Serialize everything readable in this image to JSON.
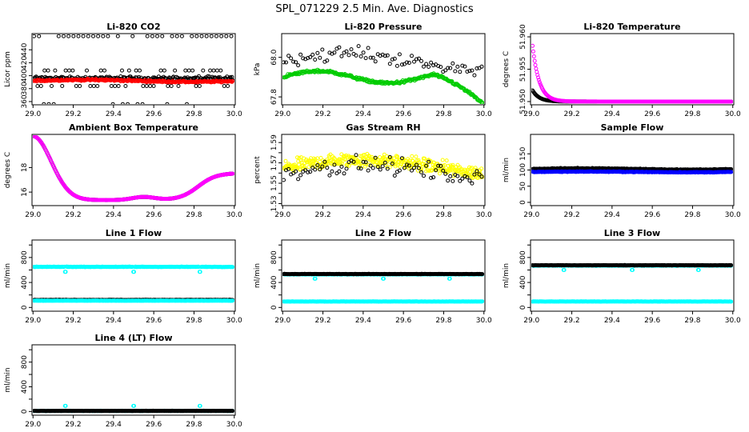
{
  "page": {
    "title": "SPL_071229  2.5 Min. Ave. Diagnostics"
  },
  "colors": {
    "black": "#000000",
    "red": "#ff0000",
    "green": "#00cc00",
    "magenta": "#ff00ff",
    "yellow": "#ffff00",
    "blue": "#0000ff",
    "cyan": "#00ffff"
  },
  "x_axis": {
    "ticks": [
      29.0,
      29.2,
      29.4,
      29.6,
      29.8,
      30.0
    ],
    "labels": [
      "29.0",
      "29.2",
      "29.4",
      "29.6",
      "29.8",
      "30.0"
    ]
  },
  "chart_data": [
    {
      "type": "scatter",
      "title": "Li-820 CO2",
      "ylabel": "Licor ppm",
      "xlim": [
        28.995,
        30.005
      ],
      "ylim": [
        355,
        465
      ],
      "yticks": [
        360,
        380,
        400,
        420,
        440
      ],
      "ytick_labels": [
        "360",
        "380",
        "400",
        "420",
        "440"
      ],
      "series": [
        {
          "name": "ref",
          "color": "black",
          "kind": "spikes",
          "base": 396,
          "amp": 40,
          "noise": 4
        },
        {
          "name": "main",
          "color": "red",
          "kind": "flat",
          "base": 392,
          "amp": 1.5,
          "noise": 2
        }
      ]
    },
    {
      "type": "scatter",
      "title": "Li-820 Pressure",
      "ylabel": "kPa",
      "xlim": [
        28.995,
        30.005
      ],
      "ylim": [
        67.76,
        68.12
      ],
      "yticks": [
        67.8,
        68.0
      ],
      "ytick_labels": [
        "67.8",
        "68.0"
      ],
      "series": [
        {
          "name": "ref",
          "color": "black",
          "kind": "scatter",
          "base": 67.98,
          "amp": 0.04,
          "noise": 0.05
        },
        {
          "name": "main",
          "color": "green",
          "kind": "pressure",
          "base": 67.9,
          "amp": 0.03,
          "noise": 0.01
        }
      ]
    },
    {
      "type": "scatter",
      "title": "Li-820 Temperature",
      "ylabel": "degrees C",
      "xlim": [
        28.995,
        30.005
      ],
      "ylim": [
        51.9495,
        51.9605
      ],
      "yticks": [
        51.95,
        51.955,
        51.96
      ],
      "ytick_labels": [
        "51.950",
        "51.955",
        "51.960"
      ],
      "series": [
        {
          "name": "ref",
          "color": "black",
          "kind": "decay",
          "base": 51.95,
          "amp": 0.002,
          "noise": 0
        },
        {
          "name": "main",
          "color": "magenta",
          "kind": "decay",
          "base": 51.95,
          "amp": 0.01,
          "noise": 0
        }
      ]
    },
    {
      "type": "scatter",
      "title": "Ambient Box Temperature",
      "ylabel": "degrees C",
      "xlim": [
        28.995,
        30.005
      ],
      "ylim": [
        14.9,
        20.7
      ],
      "yticks": [
        16,
        18
      ],
      "ytick_labels": [
        "16",
        "18"
      ],
      "series": [
        {
          "name": "ref",
          "color": "black",
          "kind": "ambient",
          "base": 0,
          "amp": 0,
          "noise": 0
        },
        {
          "name": "main",
          "color": "magenta",
          "kind": "ambient",
          "base": 0,
          "amp": 0,
          "noise": 0
        }
      ]
    },
    {
      "type": "scatter",
      "title": "Gas Stream RH",
      "ylabel": "percent",
      "xlim": [
        28.995,
        30.005
      ],
      "ylim": [
        1.528,
        1.598
      ],
      "yticks": [
        1.53,
        1.54,
        1.55,
        1.56,
        1.57,
        1.58,
        1.59
      ],
      "ytick_labels": [
        "1.53",
        "",
        "1.55",
        "",
        "1.57",
        "",
        "1.59"
      ],
      "series": [
        {
          "name": "main",
          "color": "yellow",
          "kind": "rh",
          "base": 1.565,
          "amp": 0.008,
          "noise": 0.01
        },
        {
          "name": "ref",
          "color": "black",
          "kind": "rhsparse",
          "base": 1.56,
          "amp": 0.008,
          "noise": 0.012
        }
      ]
    },
    {
      "type": "scatter",
      "title": "Sample Flow",
      "ylabel": "ml/min",
      "xlim": [
        28.995,
        30.005
      ],
      "ylim": [
        -10,
        210
      ],
      "yticks": [
        0,
        50,
        100,
        150
      ],
      "ytick_labels": [
        "0",
        "50",
        "100",
        "150"
      ],
      "series": [
        {
          "name": "ref",
          "color": "black",
          "kind": "flat",
          "base": 103,
          "amp": 2,
          "noise": 2
        },
        {
          "name": "main",
          "color": "blue",
          "kind": "flat",
          "base": 94,
          "amp": 1,
          "noise": 1.5
        }
      ]
    },
    {
      "type": "scatter",
      "title": "Line 1 Flow",
      "ylabel": "ml/min",
      "xlim": [
        28.995,
        30.005
      ],
      "ylim": [
        -60,
        1080
      ],
      "yticks": [
        0,
        200,
        400,
        600,
        800,
        1000
      ],
      "ytick_labels": [
        "0",
        "",
        "400",
        "",
        "800",
        ""
      ],
      "series": [
        {
          "name": "main",
          "color": "cyan",
          "kind": "flatdips",
          "base": 650,
          "amp": 80,
          "noise": 6
        },
        {
          "name": "ref",
          "color": "black",
          "kind": "flat",
          "base": 120,
          "amp": 0,
          "noise": 5
        },
        {
          "name": "low",
          "color": "cyan",
          "kind": "flat",
          "base": 108,
          "amp": 0,
          "noise": 3
        }
      ]
    },
    {
      "type": "scatter",
      "title": "Line 2 Flow",
      "ylabel": "ml/min",
      "xlim": [
        28.995,
        30.005
      ],
      "ylim": [
        -60,
        1080
      ],
      "yticks": [
        0,
        200,
        400,
        600,
        800,
        1000
      ],
      "ytick_labels": [
        "0",
        "",
        "400",
        "",
        "800",
        ""
      ],
      "series": [
        {
          "name": "main",
          "color": "cyan",
          "kind": "flatdips",
          "base": 530,
          "amp": 70,
          "noise": 5
        },
        {
          "name": "ref",
          "color": "black",
          "kind": "flat",
          "base": 535,
          "amp": 0,
          "noise": 4
        },
        {
          "name": "low",
          "color": "cyan",
          "kind": "flat",
          "base": 95,
          "amp": 0,
          "noise": 3
        }
      ]
    },
    {
      "type": "scatter",
      "title": "Line 3 Flow",
      "ylabel": "ml/min",
      "xlim": [
        28.995,
        30.005
      ],
      "ylim": [
        -60,
        1080
      ],
      "yticks": [
        0,
        200,
        400,
        600,
        800,
        1000
      ],
      "ytick_labels": [
        "0",
        "",
        "400",
        "",
        "800",
        ""
      ],
      "series": [
        {
          "name": "main",
          "color": "cyan",
          "kind": "flatdips",
          "base": 670,
          "amp": 70,
          "noise": 5
        },
        {
          "name": "ref",
          "color": "black",
          "kind": "flat",
          "base": 675,
          "amp": 0,
          "noise": 4
        },
        {
          "name": "low",
          "color": "cyan",
          "kind": "flat",
          "base": 95,
          "amp": 0,
          "noise": 3
        }
      ]
    },
    {
      "type": "scatter",
      "title": "Line 4 (LT) Flow",
      "ylabel": "ml/min",
      "xlim": [
        28.995,
        30.005
      ],
      "ylim": [
        -60,
        1080
      ],
      "yticks": [
        0,
        200,
        400,
        600,
        800,
        1000
      ],
      "ytick_labels": [
        "0",
        "",
        "400",
        "",
        "800",
        ""
      ],
      "series": [
        {
          "name": "main",
          "color": "cyan",
          "kind": "flatspikes",
          "base": 10,
          "amp": 80,
          "noise": 3
        },
        {
          "name": "ref",
          "color": "black",
          "kind": "flat",
          "base": 10,
          "amp": 0,
          "noise": 3
        }
      ]
    }
  ]
}
